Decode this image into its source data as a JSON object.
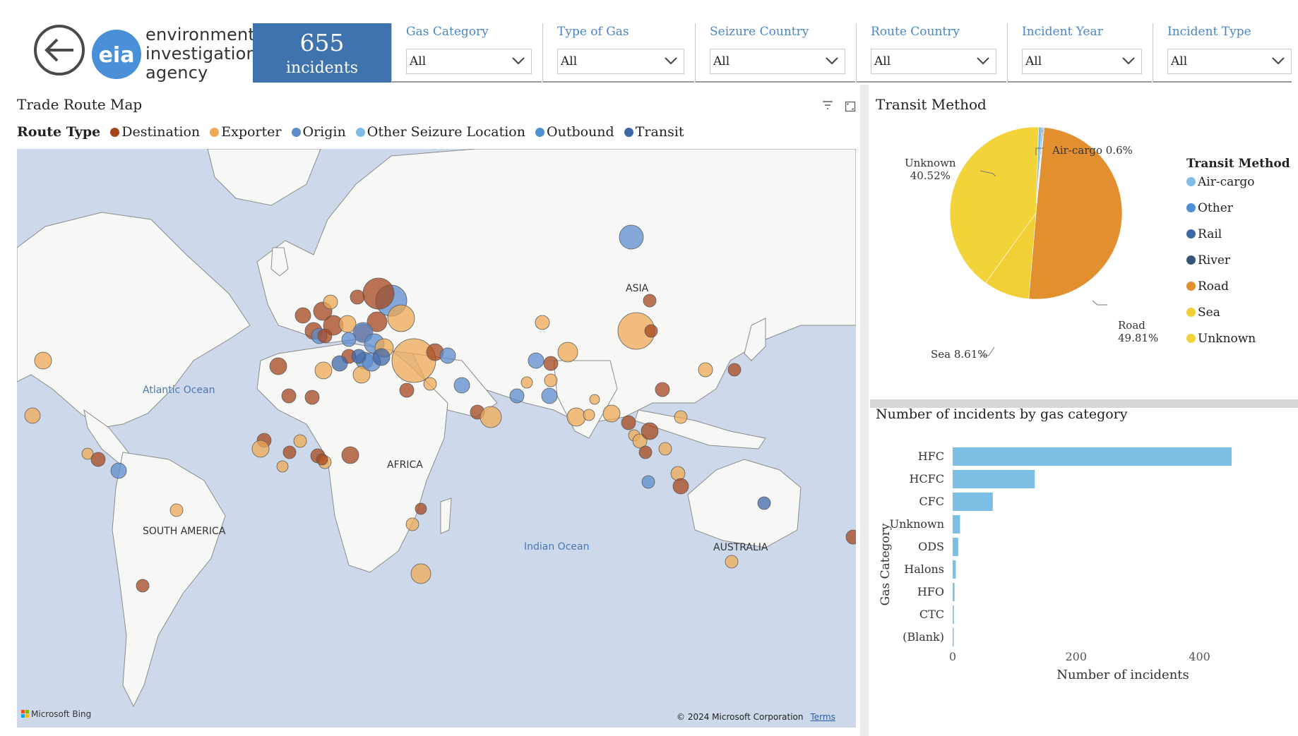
{
  "header": {
    "logo_text": [
      "environmental",
      "investigation",
      "agency"
    ],
    "logo_mark": "eia",
    "kpi": {
      "value": "655",
      "label": "incidents"
    },
    "slicers": [
      {
        "title": "Gas Category",
        "value": "All"
      },
      {
        "title": "Type of Gas",
        "value": "All"
      },
      {
        "title": "Seizure Country",
        "value": "All"
      },
      {
        "title": "Route Country",
        "value": "All"
      },
      {
        "title": "Incident Year",
        "value": "All"
      },
      {
        "title": "Incident Type",
        "value": "All"
      }
    ]
  },
  "map": {
    "title": "Trade Route Map",
    "legend_title": "Route Type",
    "legend": [
      {
        "label": "Destination",
        "color": "#a6461d"
      },
      {
        "label": "Exporter",
        "color": "#eeaa55"
      },
      {
        "label": "Origin",
        "color": "#5b8ccd"
      },
      {
        "label": "Other Seizure Location",
        "color": "#7fbde6"
      },
      {
        "label": "Outbound",
        "color": "#4f8fd3"
      },
      {
        "label": "Transit",
        "color": "#3d68a8"
      }
    ],
    "labels": {
      "atlantic": "Atlantic Ocean",
      "indian": "Indian Ocean",
      "asia": "ASIA",
      "africa": "AFRICA",
      "south_america": "SOUTH AMERICA",
      "australia": "AUSTRALIA"
    },
    "attribution": "Microsoft Bing",
    "copyright": "© 2024 Microsoft Corporation",
    "terms": "Terms"
  },
  "transit": {
    "title": "Transit Method",
    "legend_title": "Transit Method",
    "slice_labels": {
      "air": "Air-cargo 0.6%",
      "unknown_name": "Unknown",
      "unknown_pct": "40.52%",
      "sea": "Sea 8.61%",
      "road_name": "Road",
      "road_pct": "49.81%"
    }
  },
  "chart_data": [
    {
      "type": "pie",
      "title": "Transit Method",
      "legend_title": "Transit Method",
      "legend_position": "right",
      "slices": [
        {
          "label": "Air-cargo",
          "value": 0.6,
          "color": "#7fbde6"
        },
        {
          "label": "Other",
          "value": 0.2,
          "color": "#4f8fd3"
        },
        {
          "label": "Rail",
          "value": 0.13,
          "color": "#3d68a8"
        },
        {
          "label": "River",
          "value": 0.13,
          "color": "#35557a"
        },
        {
          "label": "Road",
          "value": 49.81,
          "color": "#e28f30"
        },
        {
          "label": "Sea",
          "value": 8.61,
          "color": "#f2cf36"
        },
        {
          "label": "Unknown",
          "value": 40.52,
          "color": "#f2d43a"
        }
      ]
    },
    {
      "type": "bar",
      "orientation": "horizontal",
      "title": "Number of incidents by gas category",
      "xlabel": "Number of incidents",
      "ylabel": "Gas Category",
      "categories": [
        "HFC",
        "HCFC",
        "CFC",
        "Unknown",
        "ODS",
        "Halons",
        "HFO",
        "CTC",
        "(Blank)"
      ],
      "values": [
        452,
        133,
        65,
        12,
        9,
        5,
        3,
        2,
        1
      ],
      "xlim": [
        0,
        460
      ],
      "xticks": [
        0,
        200,
        400
      ],
      "grid": false,
      "color": "#7dbfe4"
    }
  ]
}
